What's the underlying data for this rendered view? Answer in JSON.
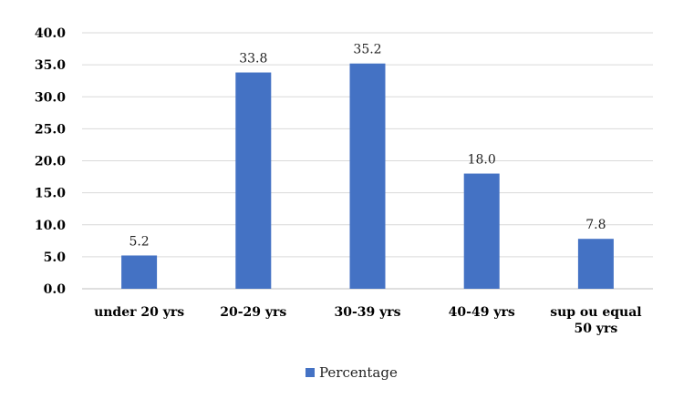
{
  "chart_data": {
    "type": "bar",
    "categories": [
      "under 20 yrs",
      "20-29 yrs",
      "30-39 yrs",
      "40-49 yrs",
      "sup ou equal 50 yrs"
    ],
    "category_lines": [
      [
        "under 20 yrs"
      ],
      [
        "20-29 yrs"
      ],
      [
        "30-39 yrs"
      ],
      [
        "40-49 yrs"
      ],
      [
        "sup ou equal",
        "50 yrs"
      ]
    ],
    "series": [
      {
        "name": "Percentage",
        "values": [
          5.2,
          33.8,
          35.2,
          18.0,
          7.8
        ],
        "color": "#4472c4"
      }
    ],
    "data_labels": [
      "5.2",
      "33.8",
      "35.2",
      "18.0",
      "7.8"
    ],
    "y_ticks": [
      "0.0",
      "5.0",
      "10.0",
      "15.0",
      "20.0",
      "25.0",
      "30.0",
      "35.0",
      "40.0"
    ],
    "ylim": [
      0,
      40
    ],
    "y_step": 5,
    "grid": true,
    "legend_position": "bottom"
  }
}
